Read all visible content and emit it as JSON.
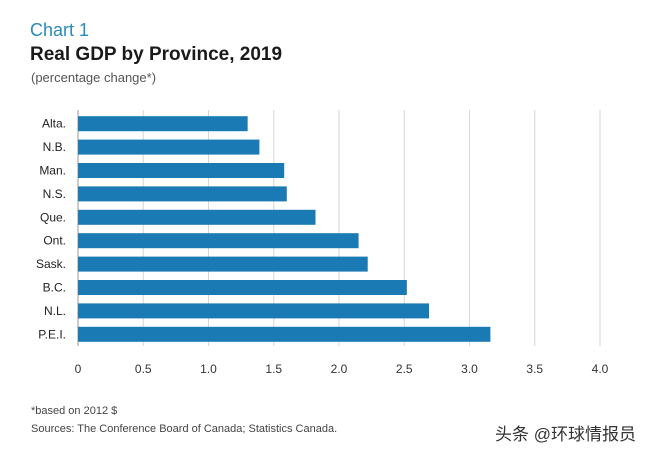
{
  "header": {
    "chart_label": "Chart 1",
    "title": "Real GDP by Province, 2019",
    "subtitle": "(percentage change*)"
  },
  "footer": {
    "note": "*based on 2012 $",
    "sources": "Sources: The Conference Board of Canada; Statistics Canada."
  },
  "watermark": "头条 @环球情报员",
  "colors": {
    "bar": "#1a7ab3",
    "grid": "#d6d6d6"
  },
  "chart_data": {
    "type": "bar",
    "orientation": "horizontal",
    "title": "Real GDP by Province, 2019",
    "subtitle": "(percentage change*)",
    "categories": [
      "Alta.",
      "N.B.",
      "Man.",
      "N.S.",
      "Que.",
      "Ont.",
      "Sask.",
      "B.C.",
      "N.L.",
      "P.E.I."
    ],
    "values": [
      1.3,
      1.39,
      1.58,
      1.6,
      1.82,
      2.15,
      2.22,
      2.52,
      2.69,
      3.16
    ],
    "xlim": [
      0,
      4.0
    ],
    "xticks": [
      "0",
      "0.5",
      "1.0",
      "1.5",
      "2.0",
      "2.5",
      "3.0",
      "3.5",
      "4.0"
    ],
    "grid": "vertical",
    "legend": "none"
  }
}
